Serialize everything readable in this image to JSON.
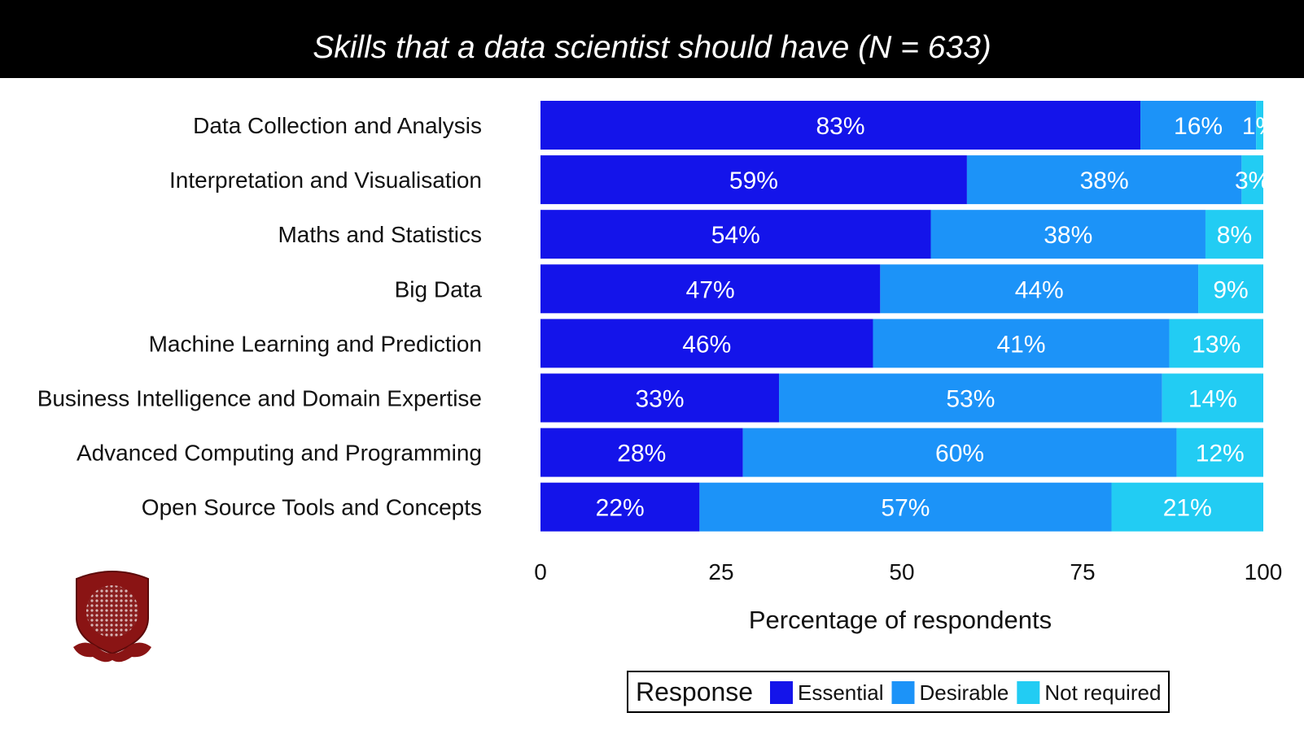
{
  "header": {
    "title": "Skills that a data scientist should have  (N = 633)"
  },
  "chart_data": {
    "type": "bar",
    "orientation": "horizontal",
    "stacked": true,
    "title": "Skills that a data scientist should have  (N = 633)",
    "xlabel": "Percentage of respondents",
    "ylabel": "",
    "xlim": [
      0,
      100
    ],
    "xticks": [
      0,
      25,
      50,
      75,
      100
    ],
    "grid": false,
    "legend_position": "bottom",
    "legend_title": "Response",
    "categories": [
      "Data Collection and Analysis",
      "Interpretation and Visualisation",
      "Maths and Statistics",
      "Big Data",
      "Machine Learning and Prediction",
      "Business Intelligence and Domain Expertise",
      "Advanced Computing and Programming",
      "Open Source Tools and Concepts"
    ],
    "series": [
      {
        "name": "Essential",
        "color": "#1414ea",
        "values": [
          83,
          59,
          54,
          47,
          46,
          33,
          28,
          22
        ]
      },
      {
        "name": "Desirable",
        "color": "#1c93f8",
        "values": [
          16,
          38,
          38,
          44,
          41,
          53,
          60,
          57
        ]
      },
      {
        "name": "Not required",
        "color": "#22ccf3",
        "values": [
          1,
          3,
          8,
          9,
          13,
          14,
          12,
          21
        ]
      }
    ]
  }
}
